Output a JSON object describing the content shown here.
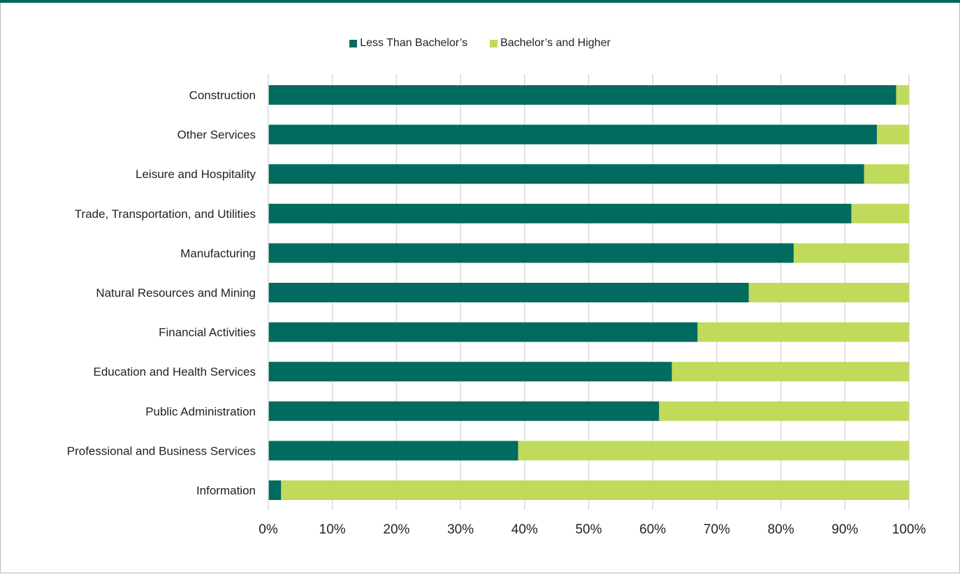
{
  "chart_data": {
    "type": "bar",
    "orientation": "horizontal",
    "stacked": true,
    "title": "",
    "xlabel": "",
    "ylabel": "",
    "xlim": [
      0,
      100
    ],
    "x_tick_labels": [
      "0%",
      "10%",
      "20%",
      "30%",
      "40%",
      "50%",
      "60%",
      "70%",
      "80%",
      "90%",
      "100%"
    ],
    "grid": true,
    "legend_position": "top",
    "categories": [
      "Construction",
      "Other Services",
      "Leisure and Hospitality",
      "Trade, Transportation, and Utilities",
      "Manufacturing",
      "Natural Resources and Mining",
      "Financial Activities",
      "Education and Health Services",
      "Public Administration",
      "Professional and Business Services",
      "Information"
    ],
    "series": [
      {
        "name": "Less Than Bachelor’s",
        "color": "#006b5e",
        "values": [
          98,
          95,
          93,
          91,
          82,
          75,
          67,
          63,
          61,
          39,
          2
        ]
      },
      {
        "name": "Bachelor’s and Higher",
        "color": "#c0da5c",
        "values": [
          2,
          5,
          7,
          9,
          18,
          25,
          33,
          37,
          39,
          61,
          98
        ]
      }
    ]
  }
}
